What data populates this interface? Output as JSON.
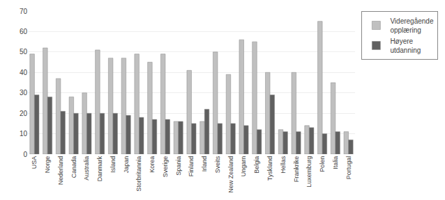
{
  "chart_data": {
    "type": "bar",
    "categories": [
      "USA",
      "Norge",
      "Nederland",
      "Canada",
      "Australia",
      "Danmark",
      "Island",
      "Japan",
      "Storbritannia",
      "Korea",
      "Sverige",
      "Spania",
      "Finland",
      "Irland",
      "Sveits",
      "New Zealand",
      "Ungarn",
      "Belgia",
      "Tyskland",
      "Hellas",
      "Frankrike",
      "Luxemburg",
      "Polen",
      "Italia",
      "Portugal"
    ],
    "series": [
      {
        "name": "Videregående\nopplæring",
        "color": "#c0c0c0",
        "values": [
          49,
          52,
          37,
          28,
          30,
          51,
          47,
          47,
          49,
          45,
          49,
          16,
          41,
          16,
          50,
          39,
          56,
          55,
          40,
          12,
          40,
          14,
          65,
          35,
          11
        ]
      },
      {
        "name": "Høyere\nutdanning",
        "color": "#606060",
        "values": [
          29,
          28,
          21,
          20,
          20,
          20,
          20,
          19,
          18,
          17,
          17,
          16,
          15,
          22,
          15,
          15,
          14,
          12,
          29,
          11,
          11,
          13,
          10,
          11,
          7
        ]
      }
    ],
    "ylim": [
      0,
      70
    ],
    "yticks": [
      0,
      10,
      20,
      30,
      40,
      50,
      60,
      70
    ],
    "grid": true,
    "legend": "right"
  }
}
